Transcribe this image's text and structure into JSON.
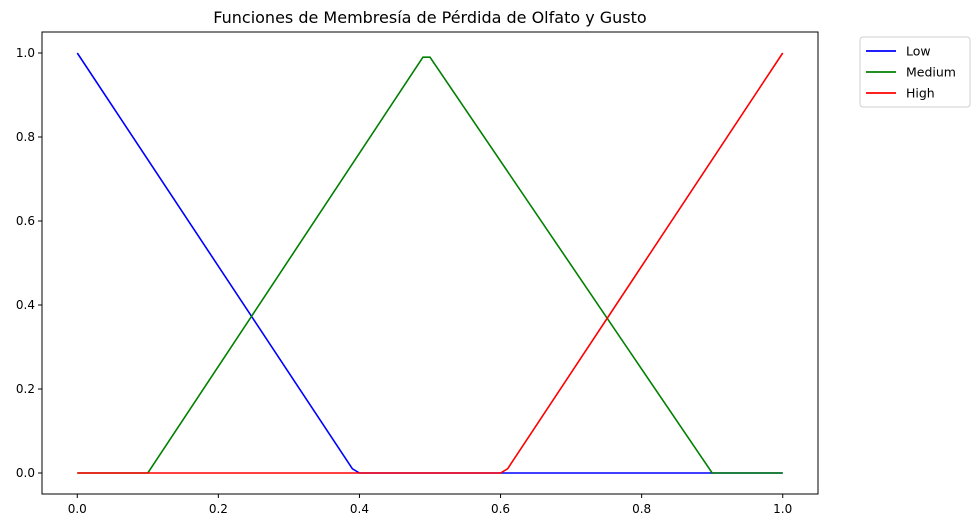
{
  "chart_data": {
    "type": "line",
    "title": "Funciones de Membresía de Pérdida de Olfato y Gusto",
    "xlabel": "",
    "ylabel": "",
    "xlim": [
      -0.05,
      1.05
    ],
    "ylim": [
      -0.05,
      1.05
    ],
    "grid": false,
    "legend_position": "outside-top-right",
    "x_ticks": [
      0.0,
      0.2,
      0.4,
      0.6,
      0.8,
      1.0
    ],
    "x_tick_labels": [
      "0.0",
      "0.2",
      "0.4",
      "0.6",
      "0.8",
      "1.0"
    ],
    "y_ticks": [
      0.0,
      0.2,
      0.4,
      0.6,
      0.8,
      1.0
    ],
    "y_tick_labels": [
      "0.0",
      "0.2",
      "0.4",
      "0.6",
      "0.8",
      "1.0"
    ],
    "series": [
      {
        "name": "Low",
        "color": "#0000ff",
        "points": [
          [
            0.0,
            1.0
          ],
          [
            0.39,
            0.01
          ],
          [
            0.4,
            0.0
          ],
          [
            1.0,
            0.0
          ]
        ]
      },
      {
        "name": "Medium",
        "color": "#008000",
        "points": [
          [
            0.0,
            0.0
          ],
          [
            0.1,
            0.0
          ],
          [
            0.49,
            0.99
          ],
          [
            0.5,
            0.99
          ],
          [
            0.9,
            0.0
          ],
          [
            1.0,
            0.0
          ]
        ]
      },
      {
        "name": "High",
        "color": "#ff0000",
        "points": [
          [
            0.0,
            0.0
          ],
          [
            0.6,
            0.0
          ],
          [
            0.61,
            0.01
          ],
          [
            1.0,
            1.0
          ]
        ]
      }
    ]
  }
}
